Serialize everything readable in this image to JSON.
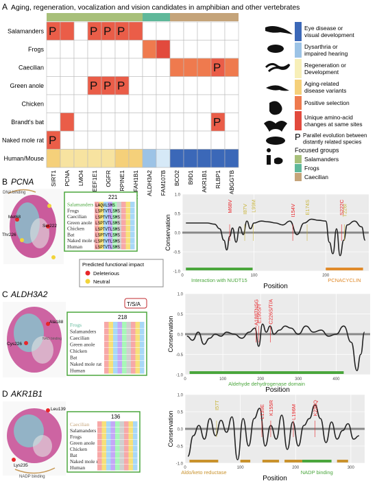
{
  "panel_a": {
    "letter": "A",
    "title": "Aging, regeneration, vocalization and vision candidates in amphibian and other vertebrates",
    "species": [
      "Salamanders",
      "Frogs",
      "Caecilian",
      "Green anole",
      "Chicken",
      "Brandt's bat",
      "Naked mole rat",
      "Human/Mouse"
    ],
    "genes": [
      "SIRT1",
      "PCNA",
      "LMO4",
      "EEF1E1",
      "OGFR",
      "SERPINE1",
      "PAFAH1B1",
      "ALDH3A2",
      "FAM107B",
      "BCO2",
      "B9D1",
      "AKR1B1",
      "RLBP1",
      "RABGGTB"
    ],
    "top_bar_colors": [
      "#a8c07a",
      "#a8c07a",
      "#a8c07a",
      "#a8c07a",
      "#a8c07a",
      "#a8c07a",
      "#a8c07a",
      "#5fb89a",
      "#5fb89a",
      "#c5a47a",
      "#c5a47a",
      "#c5a47a",
      "#c5a47a",
      "#c5a47a"
    ],
    "cells": [
      {
        "r": 0,
        "c": 0,
        "color": "#ea5d48",
        "mark": "P"
      },
      {
        "r": 0,
        "c": 1,
        "color": "#ea5d48",
        "mark": ""
      },
      {
        "r": 0,
        "c": 3,
        "color": "#ea5d48",
        "mark": "P"
      },
      {
        "r": 0,
        "c": 4,
        "color": "#ea5d48",
        "mark": "P"
      },
      {
        "r": 0,
        "c": 5,
        "color": "#ea5d48",
        "mark": "P"
      },
      {
        "r": 0,
        "c": 6,
        "color": "#ea5d48",
        "mark": ""
      },
      {
        "r": 1,
        "c": 7,
        "color": "#ef7a4e",
        "mark": ""
      },
      {
        "r": 1,
        "c": 8,
        "color": "#e24a3d",
        "mark": ""
      },
      {
        "r": 2,
        "c": 9,
        "color": "#ef7a4e",
        "mark": ""
      },
      {
        "r": 2,
        "c": 10,
        "color": "#ef7a4e",
        "mark": ""
      },
      {
        "r": 2,
        "c": 11,
        "color": "#ef7a4e",
        "mark": ""
      },
      {
        "r": 2,
        "c": 12,
        "color": "#ea5d48",
        "mark": "P"
      },
      {
        "r": 2,
        "c": 13,
        "color": "#ef7a4e",
        "mark": ""
      },
      {
        "r": 3,
        "c": 3,
        "color": "#ea5d48",
        "mark": "P"
      },
      {
        "r": 3,
        "c": 4,
        "color": "#ea5d48",
        "mark": "P"
      },
      {
        "r": 3,
        "c": 5,
        "color": "#ea5d48",
        "mark": "P"
      },
      {
        "r": 5,
        "c": 1,
        "color": "#ea5d48",
        "mark": ""
      },
      {
        "r": 5,
        "c": 12,
        "color": "#ea5d48",
        "mark": "P"
      },
      {
        "r": 6,
        "c": 0,
        "color": "#ea5d48",
        "mark": "P"
      },
      {
        "r": 7,
        "c": 0,
        "color": "#f5d07a",
        "mark": ""
      },
      {
        "r": 7,
        "c": 1,
        "color": "#f7e3a0",
        "mark": ""
      },
      {
        "r": 7,
        "c": 2,
        "color": "#f7e3a0",
        "mark": ""
      },
      {
        "r": 7,
        "c": 3,
        "color": "#f7e3a0",
        "mark": ""
      },
      {
        "r": 7,
        "c": 4,
        "color": "#f7e3a0",
        "mark": ""
      },
      {
        "r": 7,
        "c": 5,
        "color": "#f5d07a",
        "mark": ""
      },
      {
        "r": 7,
        "c": 6,
        "color": "#f5d07a",
        "mark": ""
      },
      {
        "r": 7,
        "c": 7,
        "color": "#9cc3e6",
        "mark": ""
      },
      {
        "r": 7,
        "c": 8,
        "color": "#d6e9f7",
        "mark": ""
      },
      {
        "r": 7,
        "c": 9,
        "color": "#3b68b8",
        "mark": ""
      },
      {
        "r": 7,
        "c": 10,
        "color": "#3b68b8",
        "mark": ""
      },
      {
        "r": 7,
        "c": 11,
        "color": "#3b68b8",
        "mark": ""
      },
      {
        "r": 7,
        "c": 12,
        "color": "#3b68b8",
        "mark": ""
      },
      {
        "r": 7,
        "c": 13,
        "color": "#3b68b8",
        "mark": ""
      }
    ],
    "legend": [
      {
        "label": "Eye disease or\nvisual development",
        "color": "#3b68b8"
      },
      {
        "label": "Dysarthria or\nimpaired hearing",
        "color": "#9cc3e6"
      },
      {
        "label": "Regeneration or\nDevelopment",
        "color": "#f7efb8"
      },
      {
        "label": "Aging-related\ndisease variants",
        "color": "#f5d07a"
      },
      {
        "label": "Positive selection",
        "color": "#ef7a4e"
      },
      {
        "label": "Unique amino-acid\nchanges at same sites",
        "color": "#e24a3d"
      }
    ],
    "p_legend": {
      "mark": "P",
      "label": "Parallel evolution between\ndistantly related species"
    },
    "focused_title": "Focused groups",
    "focused_groups": [
      {
        "label": "Salamanders",
        "color": "#a8c07a"
      },
      {
        "label": "Frogs",
        "color": "#5fb89a"
      },
      {
        "label": "Caecilian",
        "color": "#c5a47a"
      }
    ]
  },
  "panel_b": {
    "letter": "B",
    "gene": "PCNA",
    "structure_labels": [
      "DNA binding",
      "Met68",
      "Ser222",
      "Thr226"
    ],
    "alignment_position": "221",
    "alignment_species": [
      "Salamanders",
      "Frogs",
      "Caecilian",
      "Green anole",
      "Chicken",
      "Bat",
      "Naked mole rat",
      "Human"
    ],
    "alignment_seqs": [
      "LAQVLSMS",
      "LSPTVTLSMS",
      "LSPTVTLSMS",
      "LSPTVTLSMS",
      "LSPTVTLSMS",
      "LSPTVTLSMS",
      "LSPTVTLSMS",
      "LSPTVTLSMS"
    ],
    "impact_title": "Predicted functional impact",
    "impact_items": [
      {
        "label": "Deleterious",
        "color": "#e8262a"
      },
      {
        "label": "Neutral",
        "color": "#f2d43a"
      }
    ],
    "chart_data": {
      "type": "line",
      "ylabel": "Conservation",
      "xlabel": "Position",
      "xlim": [
        0,
        260
      ],
      "ylim": [
        -1,
        1
      ],
      "xticks": [
        0,
        100,
        200
      ],
      "yticks": [
        -1.0,
        -0.5,
        0.0,
        0.5,
        1.0
      ],
      "x": [
        5,
        15,
        25,
        35,
        45,
        52,
        58,
        62,
        66,
        70,
        75,
        80,
        85,
        90,
        95,
        100,
        110,
        120,
        130,
        140,
        150,
        160,
        170,
        180,
        190,
        200,
        205,
        210,
        215,
        220,
        225,
        230,
        240,
        250,
        255
      ],
      "y": [
        0.25,
        0.25,
        0.25,
        0.25,
        0.22,
        0.1,
        -0.2,
        -0.45,
        -0.1,
        0.12,
        -0.25,
        0.15,
        -0.05,
        0.3,
        0.1,
        0.25,
        0.3,
        0.28,
        0.25,
        0.2,
        0.3,
        -0.05,
        0.25,
        0.35,
        0.32,
        0.3,
        -0.25,
        -0.55,
        0.1,
        -0.6,
        -0.2,
        0.2,
        0.3,
        0.15,
        -0.2
      ],
      "annotations": [
        {
          "text": "M68V",
          "x": 66,
          "color": "#e8262a"
        },
        {
          "text": "I87V",
          "x": 87,
          "color": "#c8b43a"
        },
        {
          "text": "L99M",
          "x": 99,
          "color": "#c8b43a"
        },
        {
          "text": "I154V",
          "x": 154,
          "color": "#e8262a"
        },
        {
          "text": "E174S",
          "x": 174,
          "color": "#c8b43a"
        },
        {
          "text": "T226I",
          "x": 226,
          "color": "#c8b43a"
        },
        {
          "text": "S222C",
          "x": 222,
          "color": "#e8262a"
        }
      ],
      "domains": [
        {
          "label": "Interaction with NUDT15",
          "start": 5,
          "end": 98,
          "color": "#4aa63c"
        },
        {
          "label": "PCNACYCLIN",
          "start": 200,
          "end": 252,
          "color": "#e08a2a"
        }
      ]
    }
  },
  "panel_c": {
    "letter": "C",
    "gene": "ALDH3A2",
    "structure_labels": [
      "Cys226",
      "Ala188",
      "NAD binding"
    ],
    "alignment_position": "218",
    "callout": "T/S/A",
    "alignment_species": [
      "Frogs",
      "Salamanders",
      "Caecilian",
      "Green anole",
      "Chicken",
      "Bat",
      "Naked mole rat",
      "Human"
    ],
    "chart_data": {
      "type": "line",
      "ylabel": "Conservation",
      "xlabel": "Position",
      "xlim": [
        0,
        490
      ],
      "ylim": [
        -1,
        1
      ],
      "xticks": [
        0,
        100,
        200,
        300,
        400,
        500
      ],
      "yticks": [
        -1.0,
        -0.5,
        0.0,
        0.5,
        1.0
      ],
      "x": [
        5,
        20,
        35,
        50,
        65,
        80,
        95,
        110,
        130,
        150,
        170,
        185,
        195,
        205,
        215,
        225,
        235,
        250,
        265,
        280,
        300,
        320,
        340,
        360,
        380,
        400,
        420,
        440,
        455,
        465,
        475
      ],
      "y": [
        -0.05,
        -0.15,
        0.05,
        -0.25,
        -0.1,
        0.0,
        -0.05,
        0.05,
        0.0,
        -0.1,
        0.05,
        0.15,
        -0.3,
        0.25,
        0.05,
        0.2,
        0.0,
        0.1,
        0.2,
        0.15,
        0.0,
        0.2,
        0.05,
        0.1,
        -0.05,
        0.0,
        0.2,
        -0.2,
        -0.9,
        -0.5,
        0.05
      ],
      "annotations": [
        {
          "text": "A188TNSG",
          "x": 188,
          "color": "#e8262a"
        },
        {
          "text": "E195S/T",
          "x": 195,
          "color": "#e8262a"
        },
        {
          "text": "C226S/T/A",
          "x": 226,
          "color": "#e8262a"
        }
      ],
      "domains": [
        {
          "label": "Aldehyde dehydrogenase domain",
          "start": 12,
          "end": 420,
          "color": "#4aa63c"
        }
      ]
    }
  },
  "panel_d": {
    "letter": "D",
    "gene": "AKR1B1",
    "structure_labels": [
      "Leu139",
      "Lys235",
      "NADP binding"
    ],
    "alignment_position": "136",
    "alignment_species": [
      "Caecilian",
      "Salamanders",
      "Frogs",
      "Green anole",
      "Chicken",
      "Bat",
      "Naked mole rat",
      "Human"
    ],
    "chart_data": {
      "type": "line",
      "ylabel": "Conservation",
      "xlabel": "Position",
      "xlim": [
        0,
        325
      ],
      "ylim": [
        -1,
        1
      ],
      "xticks": [
        0,
        100,
        200,
        300
      ],
      "yticks": [
        -1.0,
        -0.5,
        0.0,
        0.5,
        1.0
      ],
      "x": [
        5,
        15,
        25,
        35,
        45,
        55,
        65,
        75,
        85,
        95,
        105,
        115,
        125,
        135,
        145,
        155,
        165,
        175,
        185,
        195,
        205,
        215,
        225,
        235,
        245,
        255,
        265,
        275,
        285,
        295,
        305,
        315
      ],
      "y": [
        -0.8,
        -0.2,
        0.1,
        -0.3,
        0.3,
        -0.2,
        0.25,
        -0.1,
        0.35,
        -0.9,
        0.3,
        -0.5,
        0.3,
        0.6,
        -0.5,
        0.1,
        -0.3,
        0.4,
        -0.6,
        0.2,
        -0.5,
        0.1,
        0.3,
        0.7,
        0.3,
        -0.4,
        0.2,
        -0.3,
        -0.05,
        0.15,
        -0.3,
        -0.2
      ],
      "annotations": [
        {
          "text": "I57T",
          "x": 57,
          "color": "#c8b43a"
        },
        {
          "text": "L139E",
          "x": 139,
          "color": "#e8262a"
        },
        {
          "text": "K155R",
          "x": 155,
          "color": "#e8262a"
        },
        {
          "text": "L196M",
          "x": 196,
          "color": "#e8262a"
        },
        {
          "text": "K235Q",
          "x": 235,
          "color": "#e8262a"
        }
      ],
      "domains": [
        {
          "label": "Aldo/keto reductase",
          "start": 8,
          "end": 60,
          "color": "#c9922c"
        },
        {
          "label": "",
          "start": 100,
          "end": 118,
          "color": "#c9922c"
        },
        {
          "label": "",
          "start": 140,
          "end": 170,
          "color": "#c9922c"
        },
        {
          "label": "",
          "start": 180,
          "end": 212,
          "color": "#c9922c"
        },
        {
          "label": "NADP binding",
          "start": 212,
          "end": 265,
          "color": "#4aa63c"
        },
        {
          "label": "",
          "start": 275,
          "end": 295,
          "color": "#c9922c"
        }
      ]
    }
  }
}
